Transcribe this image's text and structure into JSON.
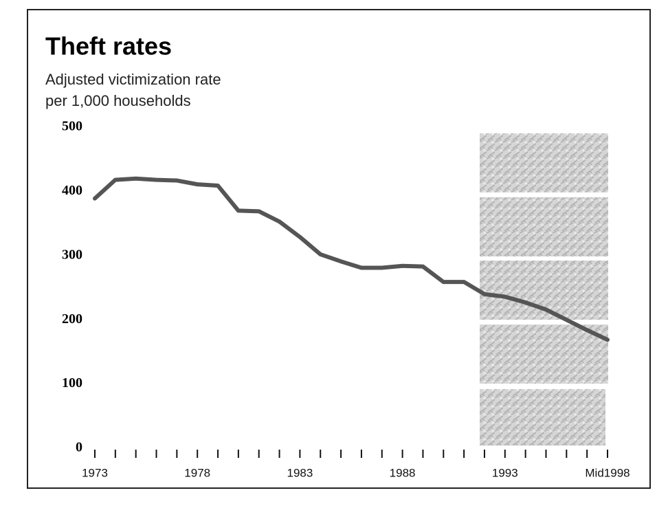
{
  "chart_data": {
    "type": "line",
    "title": "Theft rates",
    "subtitle": [
      "Adjusted victimization rate",
      "per 1,000 households"
    ],
    "x": [
      1973,
      1974,
      1975,
      1976,
      1977,
      1978,
      1979,
      1980,
      1981,
      1982,
      1983,
      1984,
      1985,
      1986,
      1987,
      1988,
      1989,
      1990,
      1991,
      1992,
      1993,
      1994,
      1995,
      1996,
      1997,
      1998
    ],
    "values": [
      389,
      418,
      420,
      418,
      417,
      411,
      409,
      370,
      369,
      353,
      329,
      302,
      291,
      281,
      281,
      284,
      283,
      259,
      259,
      240,
      236,
      227,
      216,
      200,
      184,
      169
    ],
    "color": "#555555",
    "xlim": [
      1973,
      1998
    ],
    "xticks": [
      1973,
      1978,
      1983,
      1988,
      1993,
      {
        "value": 1998,
        "label": "Mid1998"
      }
    ],
    "xminorticks": [
      1973,
      1974,
      1975,
      1976,
      1977,
      1978,
      1979,
      1980,
      1981,
      1982,
      1983,
      1984,
      1985,
      1986,
      1987,
      1988,
      1989,
      1990,
      1991,
      1992,
      1993,
      1994,
      1995,
      1996,
      1997,
      1998
    ],
    "ylim": [
      0,
      500
    ],
    "yticks": [
      0,
      100,
      200,
      300,
      400,
      500
    ],
    "grid": false
  }
}
